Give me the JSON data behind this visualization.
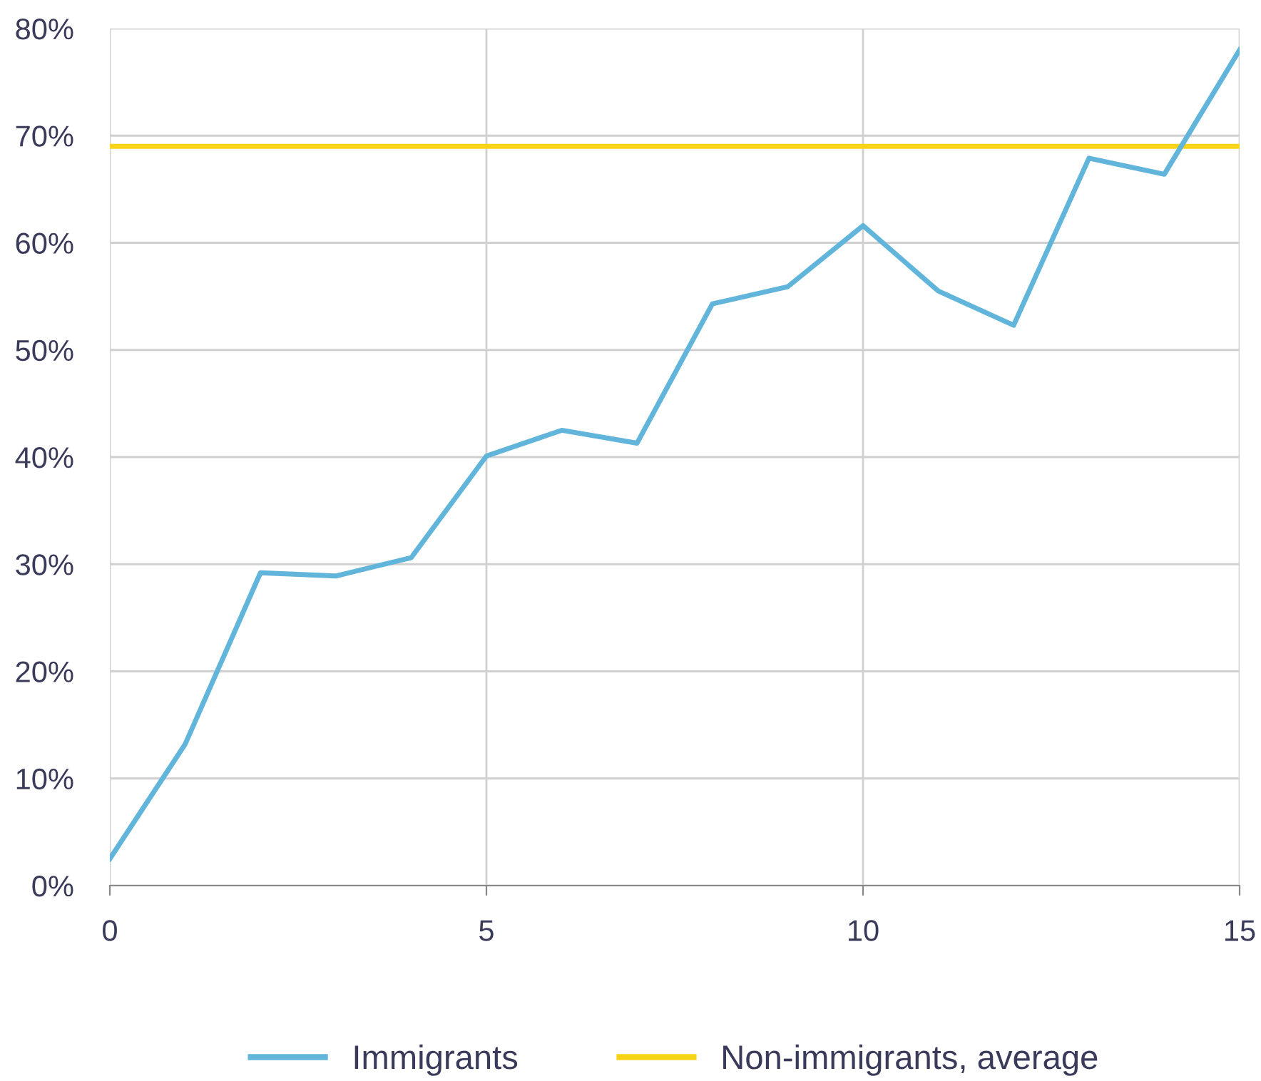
{
  "chart_data": {
    "type": "line",
    "x": [
      0,
      1,
      2,
      3,
      4,
      5,
      6,
      7,
      8,
      9,
      10,
      11,
      12,
      13,
      14,
      15
    ],
    "series": [
      {
        "name": "Immigrants",
        "color": "#62b5da",
        "values": [
          2.5,
          13.2,
          29.2,
          28.9,
          30.6,
          40.1,
          42.5,
          41.3,
          54.3,
          55.9,
          61.6,
          55.5,
          52.3,
          67.9,
          66.4,
          78.0
        ]
      }
    ],
    "ref_lines": [
      {
        "axis": "y",
        "value": 69.0,
        "label": "Non-immigrants, average",
        "color": "#f7d417"
      }
    ],
    "xlim": [
      0,
      15
    ],
    "xticks": [
      0,
      5,
      10,
      15
    ],
    "ylim": [
      0,
      80
    ],
    "yticks": [
      {
        "value": 0,
        "label": "0%"
      },
      {
        "value": 10,
        "label": "10%"
      },
      {
        "value": 20,
        "label": "20%"
      },
      {
        "value": 30,
        "label": "30%"
      },
      {
        "value": 40,
        "label": "40%"
      },
      {
        "value": 50,
        "label": "50%"
      },
      {
        "value": 60,
        "label": "60%"
      },
      {
        "value": 70,
        "label": "70%"
      },
      {
        "value": 80,
        "label": "80%"
      }
    ],
    "grid": true,
    "legend": "bottom",
    "marker": "none",
    "line_style": "solid"
  }
}
